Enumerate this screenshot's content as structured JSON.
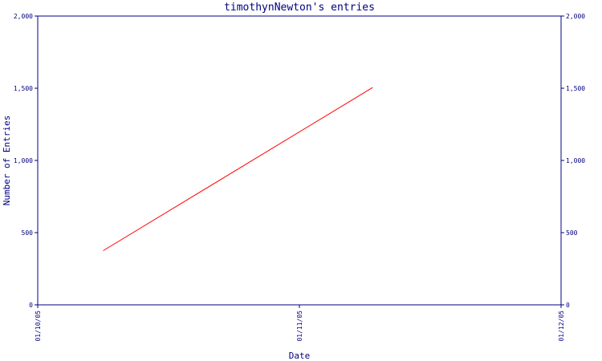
{
  "chart_data": {
    "type": "line",
    "title": "timothynNewton's entries",
    "xlabel": "Date",
    "ylabel": "Number of Entries",
    "x_ticks": [
      "01/10/05",
      "01/11/05",
      "01/12/05"
    ],
    "y_ticks": [
      0,
      500,
      1000,
      1500,
      2000
    ],
    "y_tick_labels": [
      "0",
      "500",
      "1,000",
      "1,500",
      "2,000"
    ],
    "xlim": [
      "01/10/05",
      "01/12/05"
    ],
    "ylim": [
      0,
      2000
    ],
    "grid": false,
    "mirror_y_axis": true,
    "colors": {
      "axis": "#000080",
      "series": "#ff0000",
      "background": "#ffffff"
    },
    "series": [
      {
        "x": [
          "01/10/05 + 0.25 month",
          "01/11/05 + 0.28 month"
        ],
        "x_months": [
          0.25,
          1.28
        ],
        "values": [
          375,
          1505
        ]
      }
    ]
  }
}
